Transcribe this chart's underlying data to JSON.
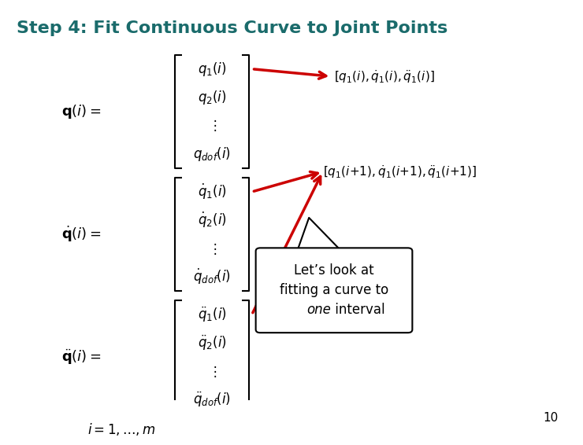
{
  "title": "Step 4: Fit Continuous Curve to Joint Points",
  "title_color": "#1a6b6b",
  "title_fontsize": 16,
  "background_color": "#ffffff",
  "page_number": "10",
  "q_lhs": "$\\mathbf{q}(i) = $",
  "qdot_lhs": "$\\dot{\\mathbf{q}}(i) = $",
  "qddot_lhs": "$\\ddot{\\mathbf{q}}(i) = $",
  "q_vec": [
    "$q_1(i)$",
    "$q_2(i)$",
    "$\\vdots$",
    "$q_{dof}(i)$"
  ],
  "qdot_vec": [
    "$\\dot{q}_1(i)$",
    "$\\dot{q}_2(i)$",
    "$\\vdots$",
    "$\\dot{q}_{dof}(i)$"
  ],
  "qddot_vec": [
    "$\\ddot{q}_1(i)$",
    "$\\ddot{q}_2(i)$",
    "$\\vdots$",
    "$\\ddot{q}_{dof}(i)$"
  ],
  "label1": "$[q_1(i), \\dot{q}_1(i), \\ddot{q}_1(i)]$",
  "label2": "$[q_1(i{+}1), \\dot{q}_1(i{+}1), \\ddot{q}_1(i{+}1)]$",
  "index": "$i = 1, \\ldots, m$",
  "arrow_color": "#cc0000",
  "callout_line1": "Let’s look at",
  "callout_line2": "fitting a curve to",
  "callout_line3_normal": " interval",
  "callout_line3_italic": "one",
  "callout_fontsize": 12
}
